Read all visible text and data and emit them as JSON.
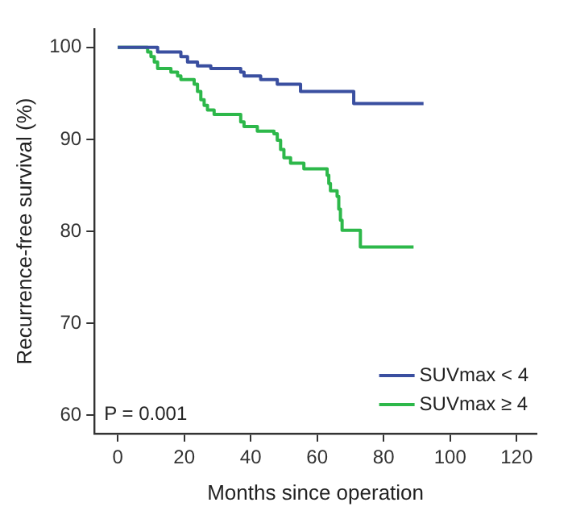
{
  "chart_data": {
    "type": "step",
    "xlabel": "Months since operation",
    "ylabel": "Recurrence-free survival (%)",
    "xlim": [
      -7,
      126
    ],
    "xticks": [
      0,
      20,
      40,
      60,
      80,
      100,
      120
    ],
    "ylim": [
      58,
      102
    ],
    "yticks": [
      60,
      70,
      80,
      90,
      100
    ],
    "grid": false,
    "legend": "bottom right",
    "line_style": "solid",
    "annotations": [
      "P = 0.001"
    ],
    "series": [
      {
        "name": "SUVmax < 4",
        "color": "#3a4fa0",
        "x": [
          0,
          12,
          19,
          21,
          24,
          28,
          37,
          38,
          43,
          48,
          55,
          71,
          92
        ],
        "values": [
          100,
          99.5,
          99,
          98.4,
          98,
          97.7,
          97.3,
          96.9,
          96.5,
          96,
          95.2,
          93.9,
          93.9
        ]
      },
      {
        "name": "SUVmax ≥ 4",
        "color": "#2db84a",
        "x": [
          0,
          9,
          10,
          11,
          12,
          16,
          18,
          19,
          23,
          24,
          25,
          26,
          27,
          29,
          37,
          38,
          42,
          47,
          48,
          49,
          50,
          52,
          56,
          63,
          63.5,
          64,
          66,
          66.5,
          67,
          67.5,
          73,
          89
        ],
        "values": [
          100,
          99.5,
          99,
          98.4,
          97.7,
          97.3,
          96.9,
          96.5,
          96,
          95.2,
          94.3,
          93.7,
          93.2,
          92.7,
          91.9,
          91.4,
          90.9,
          90.6,
          89.9,
          88.9,
          88,
          87.4,
          86.8,
          86.1,
          85.2,
          84.4,
          83.8,
          82.4,
          81.2,
          80.1,
          78.3,
          78.3
        ]
      }
    ]
  }
}
